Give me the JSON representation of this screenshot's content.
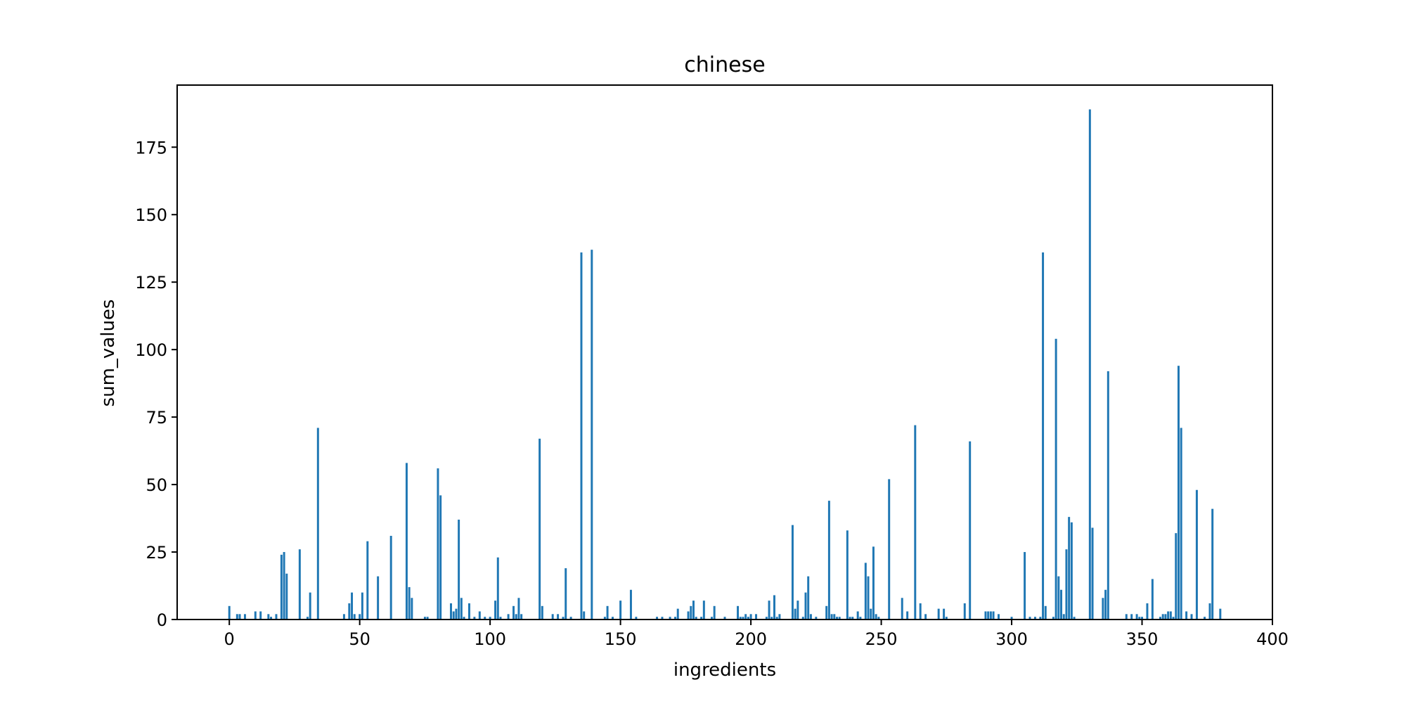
{
  "chart_data": {
    "type": "bar",
    "title": "chinese",
    "xlabel": "ingredients",
    "ylabel": "sum_values",
    "xlim": [
      -20,
      400
    ],
    "ylim": [
      0,
      198
    ],
    "xticks": [
      0,
      50,
      100,
      150,
      200,
      250,
      300,
      350,
      400
    ],
    "yticks": [
      0,
      25,
      50,
      75,
      100,
      125,
      150,
      175
    ],
    "bar_color": "#1f77b4",
    "grid": false,
    "x": [
      0,
      3,
      4,
      6,
      10,
      12,
      15,
      16,
      18,
      20,
      21,
      22,
      27,
      30,
      31,
      34,
      44,
      46,
      47,
      48,
      50,
      51,
      53,
      57,
      62,
      68,
      69,
      70,
      75,
      76,
      80,
      81,
      85,
      86,
      87,
      88,
      89,
      90,
      92,
      94,
      96,
      98,
      100,
      102,
      103,
      104,
      107,
      109,
      110,
      111,
      112,
      119,
      120,
      124,
      126,
      128,
      129,
      131,
      135,
      136,
      139,
      144,
      145,
      147,
      150,
      154,
      156,
      164,
      166,
      169,
      171,
      172,
      176,
      177,
      178,
      179,
      181,
      182,
      185,
      186,
      190,
      195,
      196,
      197,
      198,
      199,
      200,
      202,
      206,
      207,
      208,
      209,
      210,
      211,
      216,
      217,
      218,
      220,
      221,
      222,
      223,
      225,
      229,
      230,
      231,
      232,
      233,
      234,
      237,
      238,
      239,
      241,
      242,
      244,
      245,
      246,
      247,
      248,
      249,
      253,
      258,
      260,
      263,
      265,
      267,
      272,
      274,
      275,
      282,
      284,
      290,
      291,
      292,
      293,
      295,
      300,
      305,
      307,
      309,
      311,
      312,
      313,
      316,
      317,
      318,
      319,
      320,
      321,
      322,
      323,
      324,
      330,
      331,
      335,
      336,
      337,
      344,
      346,
      348,
      349,
      350,
      352,
      354,
      357,
      358,
      359,
      360,
      361,
      362,
      363,
      364,
      365,
      367,
      369,
      371,
      374,
      376,
      377,
      380
    ],
    "values": [
      5,
      2,
      2,
      2,
      3,
      3,
      2,
      1,
      2,
      24,
      25,
      17,
      26,
      1,
      10,
      71,
      2,
      6,
      10,
      2,
      2,
      10,
      29,
      16,
      31,
      58,
      12,
      8,
      1,
      1,
      56,
      46,
      6,
      3,
      4,
      37,
      8,
      1,
      6,
      1,
      3,
      1,
      1,
      7,
      23,
      1,
      2,
      5,
      2,
      8,
      2,
      67,
      5,
      2,
      2,
      1,
      19,
      1,
      136,
      3,
      137,
      1,
      5,
      1,
      7,
      11,
      1,
      1,
      1,
      1,
      1,
      4,
      3,
      5,
      7,
      1,
      1,
      7,
      1,
      5,
      1,
      5,
      1,
      1,
      2,
      1,
      2,
      2,
      1,
      7,
      1,
      9,
      1,
      2,
      35,
      4,
      7,
      1,
      10,
      16,
      2,
      1,
      5,
      44,
      2,
      2,
      1,
      1,
      33,
      1,
      1,
      3,
      1,
      21,
      16,
      4,
      27,
      2,
      1,
      52,
      8,
      3,
      72,
      6,
      2,
      4,
      4,
      1,
      6,
      66,
      3,
      3,
      3,
      3,
      2,
      1,
      25,
      1,
      1,
      1,
      136,
      5,
      1,
      104,
      16,
      11,
      2,
      26,
      38,
      36,
      1,
      189,
      34,
      8,
      11,
      92,
      2,
      2,
      2,
      1,
      1,
      6,
      15,
      1,
      2,
      2,
      3,
      3,
      1,
      32,
      94,
      71,
      3,
      2,
      48,
      1,
      6,
      41,
      4
    ]
  }
}
